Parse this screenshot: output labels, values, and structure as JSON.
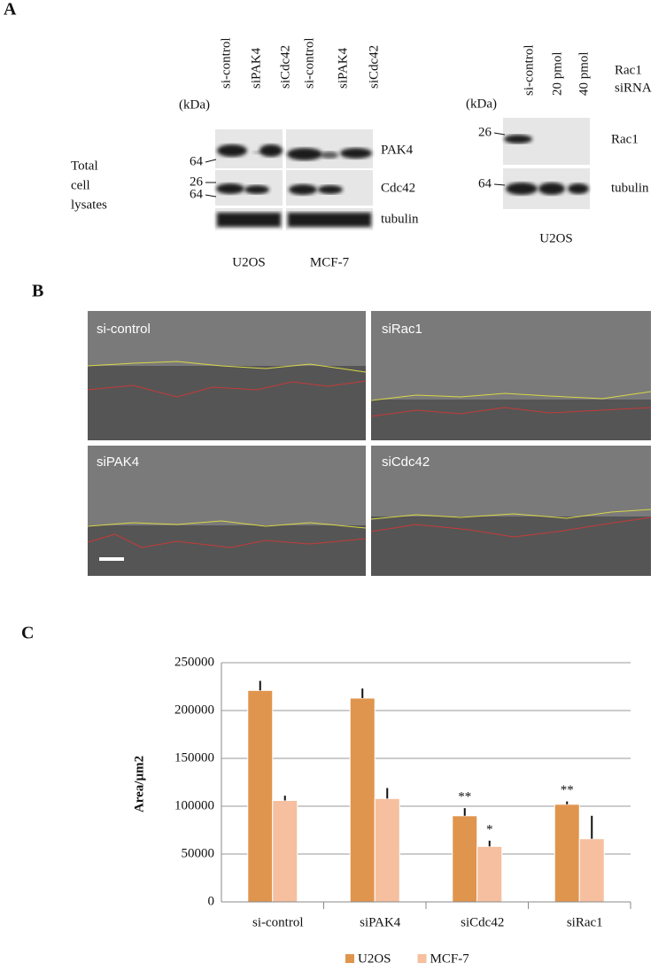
{
  "panel_a": {
    "label": "A",
    "left_blot": {
      "kda": "(kDa)",
      "markers": [
        "64",
        "26",
        "64"
      ],
      "row_group_label": [
        "Total",
        "cell",
        "lysates"
      ],
      "lanes": [
        "si-control",
        "siPAK4",
        "siCdc42",
        "si-control",
        "siPAK4",
        "siCdc42"
      ],
      "proteins": [
        "PAK4",
        "Cdc42",
        "tubulin"
      ],
      "cell_lines": [
        "U2OS",
        "MCF-7"
      ]
    },
    "right_blot": {
      "kda": "(kDa)",
      "markers": [
        "26",
        "64"
      ],
      "lanes": [
        "si-control",
        "20 pmol",
        "40 pmol"
      ],
      "treatment": [
        "Rac1",
        "siRNA"
      ],
      "proteins": [
        "Rac1",
        "tubulin"
      ],
      "cell_line": "U2OS"
    }
  },
  "panel_b": {
    "label": "B",
    "images": [
      "si-control",
      "siRac1",
      "siPAK4",
      "siCdc42"
    ]
  },
  "panel_c": {
    "label": "C"
  },
  "chart_data": {
    "type": "bar",
    "ylabel": "Area/µm2",
    "categories": [
      "si-control",
      "siPAK4",
      "siCdc42",
      "siRac1"
    ],
    "series": [
      {
        "name": "U2OS",
        "color": "#e0954e",
        "values": [
          221000,
          213000,
          90000,
          102000
        ],
        "errors": [
          10000,
          10000,
          8000,
          3000
        ],
        "significance": [
          null,
          null,
          "**",
          "**"
        ]
      },
      {
        "name": "MCF-7",
        "color": "#f6bf9f",
        "values": [
          106000,
          108000,
          58000,
          66000
        ],
        "errors": [
          5000,
          11000,
          6000,
          24000
        ],
        "significance": [
          null,
          null,
          "*",
          null
        ]
      }
    ],
    "ylim": [
      0,
      250000
    ],
    "yticks": [
      0,
      50000,
      100000,
      150000,
      200000,
      250000
    ],
    "grid": true,
    "legend": "bottom"
  }
}
